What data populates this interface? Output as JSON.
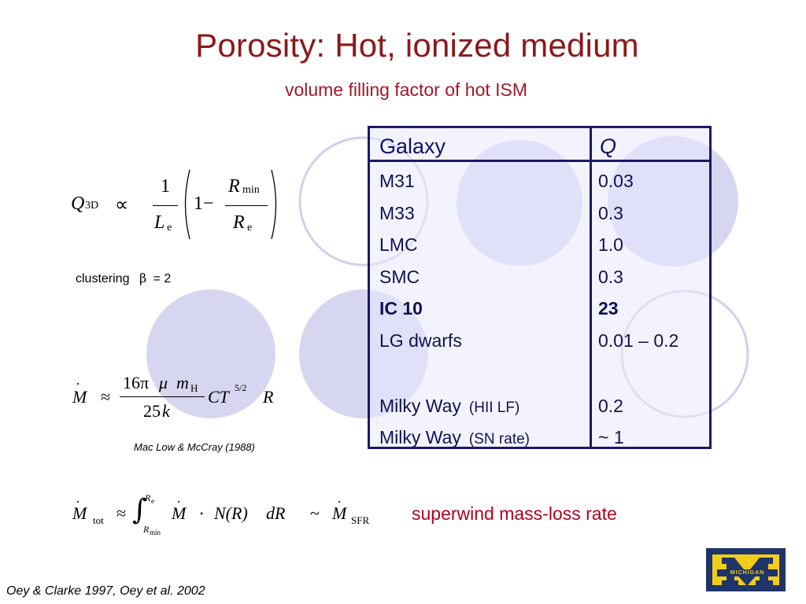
{
  "slide": {
    "title": "Porosity:  Hot, ionized medium",
    "subtitle": "volume filling factor of hot ISM"
  },
  "table": {
    "headers": [
      "Galaxy",
      "Q"
    ],
    "rows": [
      {
        "galaxy": "M31",
        "note": "",
        "q": "0.03",
        "bold": false
      },
      {
        "galaxy": "M33",
        "note": "",
        "q": "0.3",
        "bold": false
      },
      {
        "galaxy": "LMC",
        "note": "",
        "q": "1.0",
        "bold": false
      },
      {
        "galaxy": "SMC",
        "note": "",
        "q": "0.3",
        "bold": false
      },
      {
        "galaxy": "IC 10",
        "note": "",
        "q": "23",
        "bold": true
      },
      {
        "galaxy": "LG  dwarfs",
        "note": "",
        "q": "0.01 – 0.2",
        "bold": false
      },
      {
        "galaxy": "Milky Way",
        "note": "(HII LF)",
        "q": "0.2",
        "bold": false
      },
      {
        "galaxy": "Milky Way",
        "note": "(SN rate)",
        "q": "~ 1",
        "bold": false
      }
    ]
  },
  "formula1": {
    "lhs": "Q",
    "lhs_sub": "3D",
    "relation": "∝",
    "frac1_num": "1",
    "frac1_den": "L",
    "frac1_den_sub": "e",
    "one_minus": "1−",
    "frac2_num": "R",
    "frac2_num_sub": "min",
    "frac2_den": "R",
    "frac2_den_sub": "e"
  },
  "clustering": {
    "label": "clustering",
    "symbol": "β",
    "value": "= 2"
  },
  "formula2": {
    "lhs": "M",
    "relation": "≈",
    "num_coeff": "16π",
    "num_mu": "μ",
    "num_m": "m",
    "num_m_sub": "H",
    "den": "25",
    "den_k": "k",
    "ct": "CT",
    "ct_sup": "5/2",
    "r": "R"
  },
  "citation1": "Mac Low & McCray (1988)",
  "formula3": {
    "lhs": "M",
    "lhs_sub": "tot",
    "relation": "≈",
    "integral": "∫",
    "upper": "R",
    "upper_sub": "e",
    "lower": "R",
    "lower_sub": "min",
    "mdot": "M",
    "dot": "•",
    "n_of_r": "N(R)",
    "dr": "dR",
    "tilde": "~",
    "rhs": "M",
    "rhs_sub": "SFR"
  },
  "superwind_label": "superwind mass-loss rate",
  "citation2": "Oey & Clarke 1997, Oey et al. 2002",
  "logo": {
    "text": "MICHIGAN",
    "navy": "#1f3468",
    "maize": "#f2cc1a"
  },
  "colors": {
    "title": "#8b1a1a",
    "table_border": "#1a1a66",
    "circle_fill": "#d8d8f0",
    "circle_stroke": "#d0d0ee",
    "superwind": "#b00020"
  }
}
